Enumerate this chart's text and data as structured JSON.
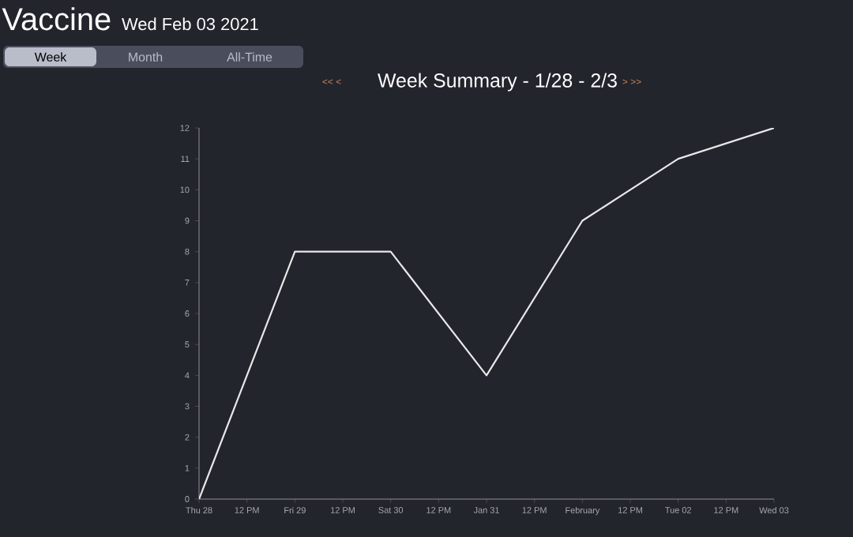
{
  "chart_data": {
    "type": "line",
    "title": "Vaccine",
    "subtitle": "Wed Feb 03 2021",
    "annotations": [
      "Week",
      "Month",
      "All-Time",
      "<< <",
      "Week Summary - 1/28 - 2/3",
      "> >>"
    ],
    "x": [
      "2021-01-28",
      "2021-01-29",
      "2021-01-30",
      "2021-01-31",
      "2021-02-01",
      "2021-02-02",
      "2021-02-03"
    ],
    "values": [
      0,
      8,
      8,
      4,
      9,
      11,
      12
    ],
    "color": "#e8e8e8",
    "xlim": [
      "2021-01-28",
      "2021-02-03"
    ],
    "xticks": [
      {
        "value": "2021-01-28",
        "label": "Thu 28"
      },
      {
        "value": "2021-01-28T12:00",
        "label": "12 PM"
      },
      {
        "value": "2021-01-29",
        "label": "Fri 29"
      },
      {
        "value": "2021-01-29T12:00",
        "label": "12 PM"
      },
      {
        "value": "2021-01-30",
        "label": "Sat 30"
      },
      {
        "value": "2021-01-30T12:00",
        "label": "12 PM"
      },
      {
        "value": "2021-01-31",
        "label": "Jan 31"
      },
      {
        "value": "2021-01-31T12:00",
        "label": "12 PM"
      },
      {
        "value": "2021-02-01",
        "label": "February"
      },
      {
        "value": "2021-02-01T12:00",
        "label": "12 PM"
      },
      {
        "value": "2021-02-02",
        "label": "Tue 02"
      },
      {
        "value": "2021-02-02T12:00",
        "label": "12 PM"
      },
      {
        "value": "2021-02-03",
        "label": "Wed 03"
      }
    ],
    "ylim": [
      0,
      12
    ],
    "yticks": [
      0,
      1,
      2,
      3,
      4,
      5,
      6,
      7,
      8,
      9,
      10,
      11,
      12
    ]
  }
}
